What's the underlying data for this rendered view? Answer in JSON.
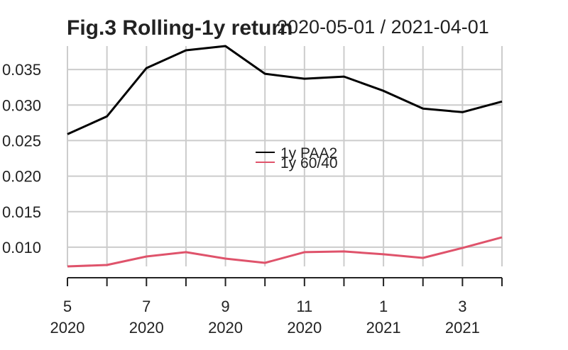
{
  "chart_data": {
    "type": "line",
    "title": "Fig.3 Rolling-1y return",
    "subtitle": "2020-05-01 / 2021-04-01",
    "xlabel": "",
    "ylabel": "",
    "x": [
      "2020-05",
      "2020-06",
      "2020-07",
      "2020-08",
      "2020-09",
      "2020-10",
      "2020-11",
      "2020-12",
      "2021-01",
      "2021-02",
      "2021-03",
      "2021-04"
    ],
    "x_tick_labels": [
      {
        "month": "5",
        "year": "2020"
      },
      {
        "month": "7",
        "year": "2020"
      },
      {
        "month": "9",
        "year": "2020"
      },
      {
        "month": "11",
        "year": "2020"
      },
      {
        "month": "1",
        "year": "2021"
      },
      {
        "month": "3",
        "year": "2021"
      }
    ],
    "y_tick_labels": [
      "0.010",
      "0.015",
      "0.020",
      "0.025",
      "0.030",
      "0.035"
    ],
    "ylim": [
      0.0073,
      0.0383
    ],
    "grid": true,
    "legend_position": "center",
    "series": [
      {
        "name": "1y PAA2",
        "color": "#000000",
        "values": [
          0.0259,
          0.0284,
          0.0352,
          0.0377,
          0.0383,
          0.0344,
          0.0337,
          0.034,
          0.032,
          0.0295,
          0.029,
          0.0305
        ]
      },
      {
        "name": "1y 60/40",
        "color": "#DF536B",
        "values": [
          0.0073,
          0.0075,
          0.0087,
          0.0093,
          0.0084,
          0.0078,
          0.0093,
          0.0094,
          0.009,
          0.0085,
          0.0099,
          0.0114
        ]
      }
    ]
  }
}
